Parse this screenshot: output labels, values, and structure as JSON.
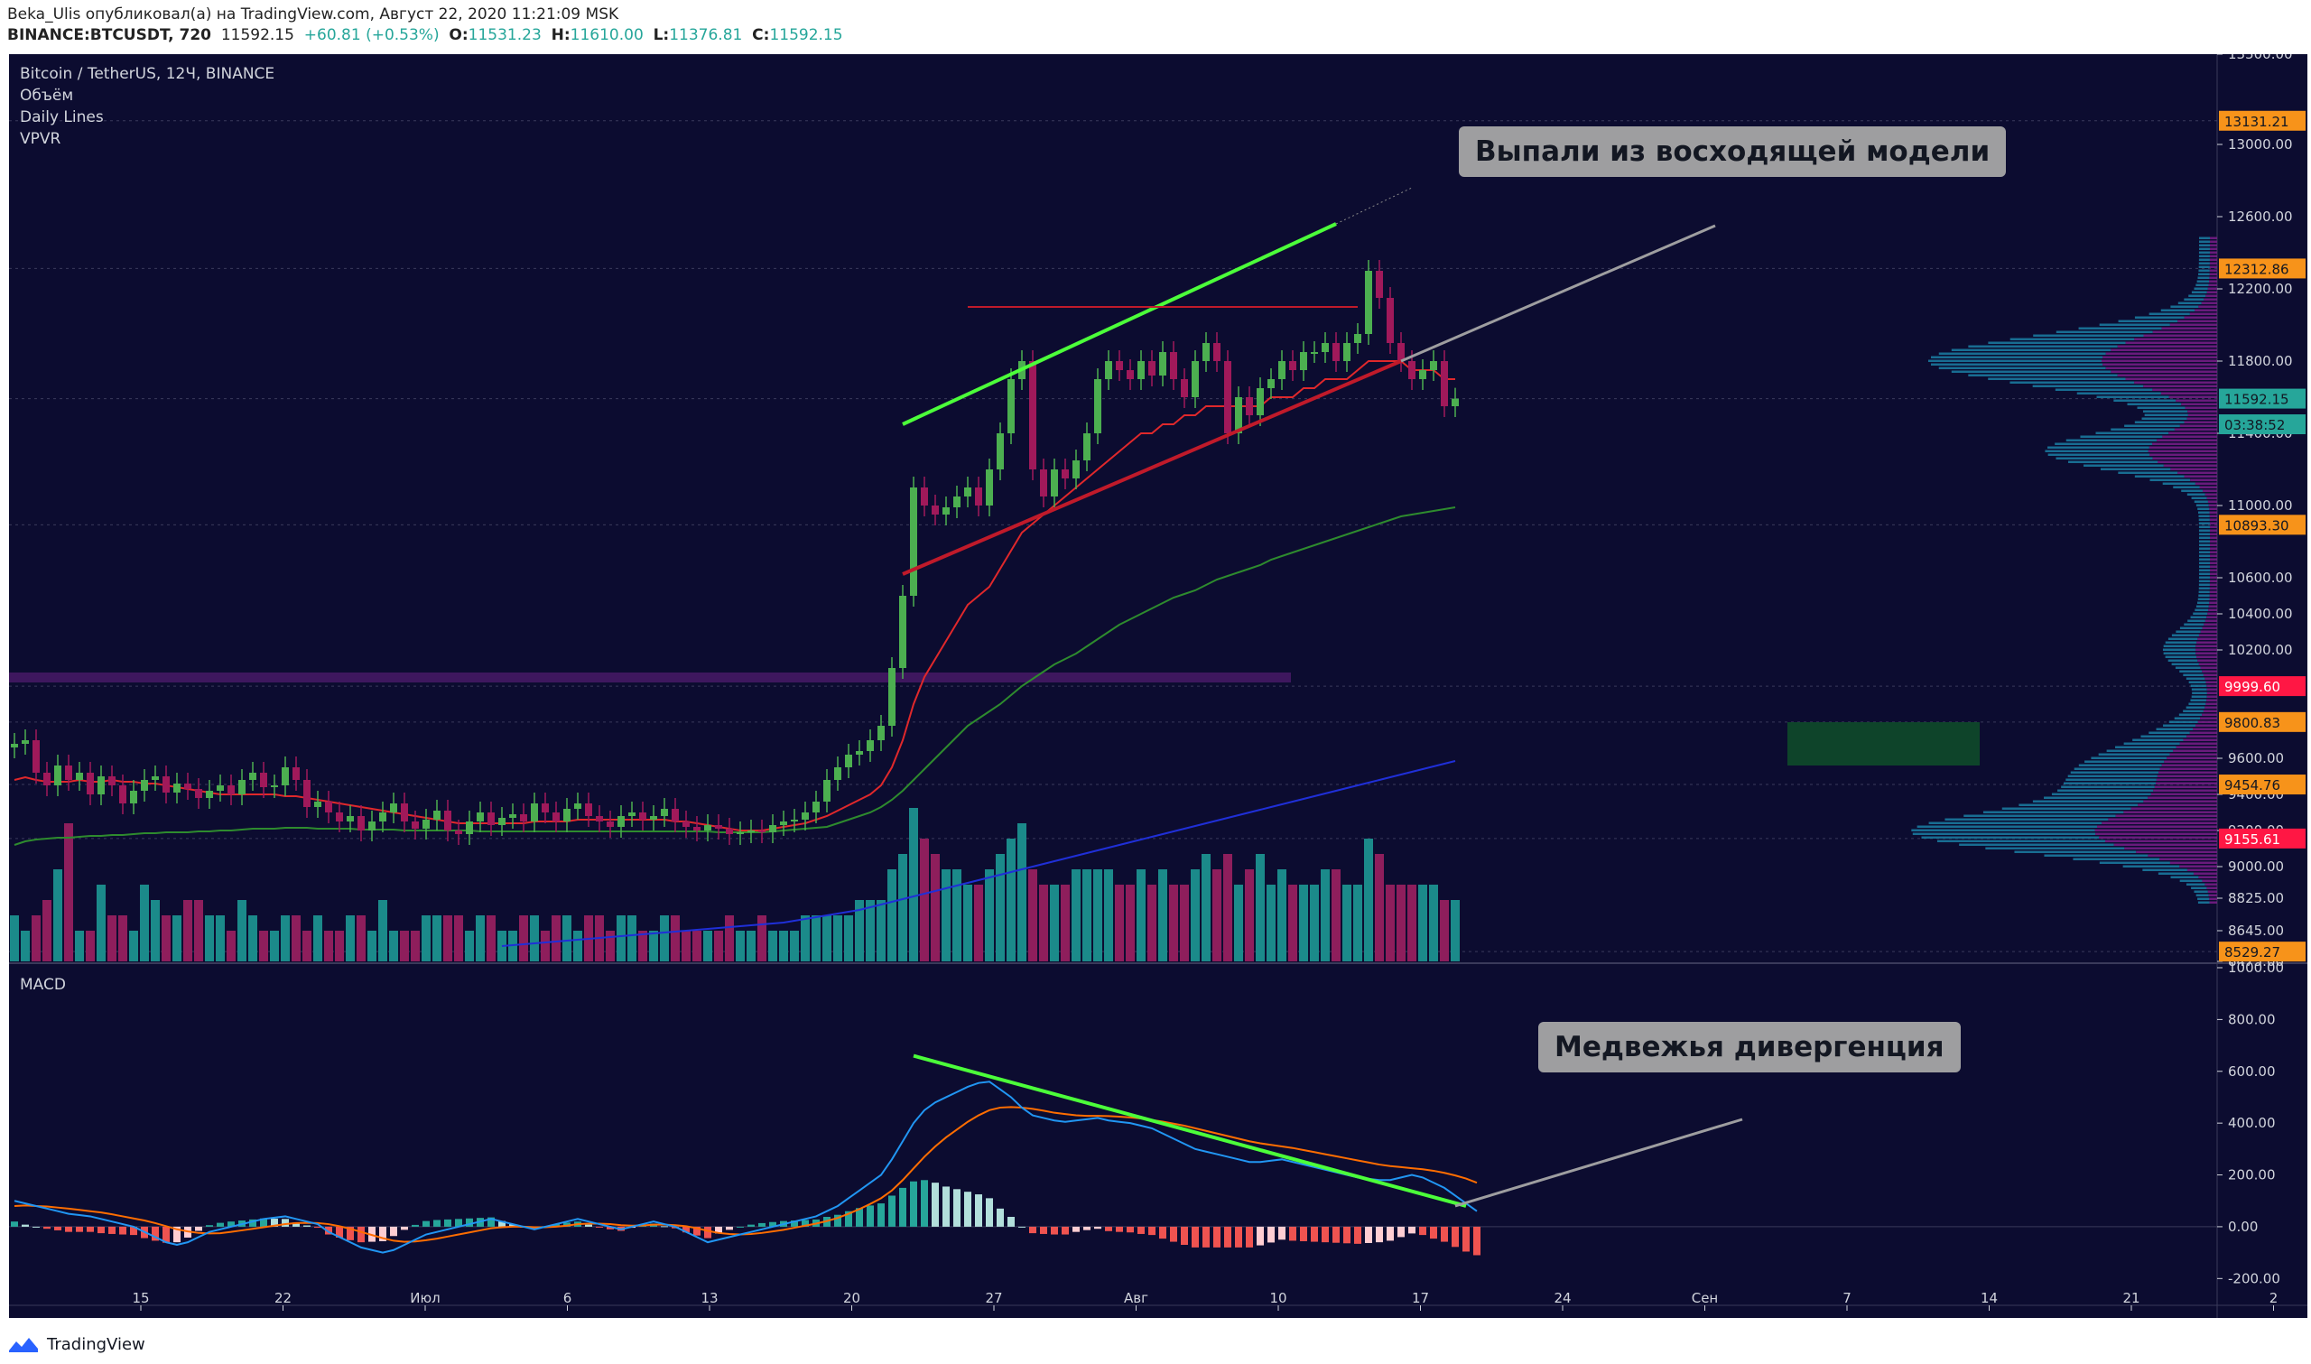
{
  "header": {
    "publish_line": "Beka_Ulis опубликовал(а) на TradingView.com, Август 22, 2020 11:21:09 MSK",
    "symbol": "BINANCE:BTCUSDT, 720",
    "last": "11592.15",
    "change": "+60.81 (+0.53%)",
    "o_label": "O:",
    "o_value": "11531.23",
    "h_label": "H:",
    "h_value": "11610.00",
    "l_label": "L:",
    "l_value": "11376.81",
    "c_label": "C:",
    "c_value": "11592.15"
  },
  "legend": {
    "title": "Bitcoin / TetherUS, 12Ч, BINANCE",
    "volume": "Объём",
    "daily_lines": "Daily Lines",
    "vpvr": "VPVR",
    "macd": "MACD"
  },
  "callouts": {
    "top": "Выпали из восходящей модели",
    "bottom": "Медвежья дивергенция"
  },
  "price_axis": {
    "ticks": [
      "13500.00",
      "13000.00",
      "12600.00",
      "12200.00",
      "11800.00",
      "11400.00",
      "11000.00",
      "10600.00",
      "10400.00",
      "10200.00",
      "9600.00",
      "9400.00",
      "9200.00",
      "9000.00",
      "8825.00",
      "8645.00",
      "8475.00"
    ],
    "badges": [
      {
        "text": "13131.21",
        "value": 13131.21,
        "color": "#f7931a"
      },
      {
        "text": "12312.86",
        "value": 12312.86,
        "color": "#f7931a"
      },
      {
        "text": "11592.15",
        "value": 11592.15,
        "color": "#26a69a"
      },
      {
        "text": "03:38:52",
        "value": 11450,
        "color": "#26a69a"
      },
      {
        "text": "10893.30",
        "value": 10893.3,
        "color": "#f7931a"
      },
      {
        "text": "9999.60",
        "value": 9999.6,
        "color": "#ff1744"
      },
      {
        "text": "9800.83",
        "value": 9800.83,
        "color": "#f7931a"
      },
      {
        "text": "9454.76",
        "value": 9454.76,
        "color": "#f7931a"
      },
      {
        "text": "9155.61",
        "value": 9155.61,
        "color": "#ff1744"
      },
      {
        "text": "8529.27",
        "value": 8529.27,
        "color": "#f7931a"
      }
    ]
  },
  "macd_axis": {
    "ticks": [
      "1000.00",
      "800.00",
      "600.00",
      "400.00",
      "200.00",
      "0.00",
      "-200.00"
    ]
  },
  "time_axis": {
    "labels": [
      "15",
      "22",
      "Июл",
      "6",
      "13",
      "20",
      "27",
      "Авг",
      "10",
      "17",
      "24",
      "Сен",
      "7",
      "14",
      "21",
      "2"
    ]
  },
  "footer": {
    "brand": "TradingView"
  },
  "colors": {
    "background": "#0c0c30",
    "up": "#4caf50",
    "down": "#a0195a",
    "vol_up": "#1b8a8a",
    "vol_down": "#8e1e5c",
    "ema_fast": "#e0282b",
    "ema_mid": "#2e8b2e",
    "ema_slow": "#1f2fd8",
    "macd": "#2196f3",
    "signal": "#ff6d00",
    "trend_green": "#4cff3a",
    "trend_red": "#c01a2a"
  },
  "chart_data": {
    "type": "candlestick",
    "interval": "12h",
    "ylim": [
      8475,
      13500
    ],
    "macd_ylim": [
      -300,
      1000
    ],
    "closes": [
      9680,
      9700,
      9520,
      9450,
      9560,
      9480,
      9520,
      9400,
      9500,
      9450,
      9350,
      9420,
      9480,
      9500,
      9410,
      9460,
      9430,
      9380,
      9420,
      9450,
      9400,
      9480,
      9520,
      9440,
      9450,
      9550,
      9480,
      9330,
      9360,
      9300,
      9250,
      9280,
      9200,
      9250,
      9300,
      9350,
      9250,
      9210,
      9260,
      9310,
      9200,
      9180,
      9250,
      9300,
      9230,
      9270,
      9290,
      9250,
      9350,
      9300,
      9250,
      9320,
      9350,
      9280,
      9250,
      9220,
      9280,
      9300,
      9260,
      9280,
      9320,
      9250,
      9220,
      9200,
      9230,
      9210,
      9180,
      9190,
      9200,
      9190,
      9230,
      9250,
      9260,
      9300,
      9360,
      9480,
      9550,
      9620,
      9640,
      9700,
      9780,
      10100,
      10500,
      11100,
      11000,
      10950,
      10990,
      11050,
      11100,
      11000,
      11200,
      11400,
      11700,
      11800,
      11200,
      11050,
      11200,
      11150,
      11250,
      11400,
      11700,
      11800,
      11750,
      11700,
      11800,
      11720,
      11850,
      11700,
      11600,
      11800,
      11900,
      11800,
      11400,
      11600,
      11500,
      11650,
      11700,
      11800,
      11750,
      11850,
      11850,
      11900,
      11800,
      11900,
      11950,
      12300,
      12150,
      11900,
      11800,
      11700,
      11750,
      11800,
      11550,
      11592
    ],
    "ema_fast": [
      9480,
      9495,
      9480,
      9470,
      9470,
      9470,
      9480,
      9470,
      9470,
      9480,
      9470,
      9470,
      9460,
      9460,
      9450,
      9440,
      9430,
      9420,
      9410,
      9400,
      9400,
      9400,
      9400,
      9400,
      9400,
      9390,
      9390,
      9380,
      9370,
      9360,
      9350,
      9340,
      9330,
      9320,
      9310,
      9300,
      9290,
      9280,
      9270,
      9260,
      9250,
      9240,
      9240,
      9240,
      9240,
      9240,
      9240,
      9240,
      9250,
      9250,
      9250,
      9250,
      9260,
      9260,
      9260,
      9260,
      9260,
      9260,
      9260,
      9260,
      9260,
      9250,
      9250,
      9240,
      9230,
      9220,
      9210,
      9200,
      9200,
      9200,
      9210,
      9220,
      9230,
      9240,
      9260,
      9280,
      9310,
      9340,
      9370,
      9400,
      9450,
      9550,
      9700,
      9900,
      10050,
      10150,
      10250,
      10350,
      10450,
      10500,
      10550,
      10650,
      10750,
      10850,
      10900,
      10950,
      11000,
      11050,
      11100,
      11150,
      11200,
      11250,
      11300,
      11350,
      11400,
      11400,
      11450,
      11450,
      11500,
      11500,
      11550,
      11550,
      11550,
      11550,
      11550,
      11550,
      11600,
      11600,
      11600,
      11650,
      11650,
      11700,
      11700,
      11700,
      11750,
      11800,
      11800,
      11800,
      11800,
      11750,
      11750,
      11750,
      11700,
      11700
    ],
    "ema_mid": [
      9120,
      9140,
      9150,
      9155,
      9160,
      9160,
      9165,
      9170,
      9170,
      9175,
      9175,
      9180,
      9185,
      9185,
      9190,
      9190,
      9190,
      9195,
      9195,
      9200,
      9200,
      9205,
      9210,
      9210,
      9210,
      9215,
      9215,
      9215,
      9210,
      9210,
      9210,
      9210,
      9205,
      9205,
      9205,
      9205,
      9200,
      9200,
      9200,
      9200,
      9200,
      9200,
      9200,
      9195,
      9195,
      9195,
      9195,
      9195,
      9195,
      9195,
      9195,
      9195,
      9195,
      9195,
      9195,
      9195,
      9195,
      9195,
      9195,
      9195,
      9195,
      9195,
      9195,
      9195,
      9195,
      9190,
      9190,
      9190,
      9190,
      9190,
      9195,
      9200,
      9205,
      9210,
      9215,
      9220,
      9240,
      9260,
      9280,
      9300,
      9330,
      9370,
      9420,
      9480,
      9540,
      9600,
      9660,
      9720,
      9780,
      9820,
      9860,
      9900,
      9950,
      10000,
      10040,
      10080,
      10120,
      10150,
      10180,
      10220,
      10260,
      10300,
      10340,
      10370,
      10400,
      10430,
      10460,
      10490,
      10510,
      10530,
      10560,
      10590,
      10610,
      10630,
      10650,
      10670,
      10700,
      10720,
      10740,
      10760,
      10780,
      10800,
      10820,
      10840,
      10860,
      10880,
      10900,
      10920,
      10940,
      10950,
      10960,
      10970,
      10980,
      10990
    ],
    "ema_slow_from_index": 45,
    "ema_slow": [
      8560,
      8565,
      8570,
      8575,
      8580,
      8585,
      8590,
      8595,
      8600,
      8605,
      8610,
      8615,
      8620,
      8625,
      8630,
      8635,
      8640,
      8645,
      8650,
      8655,
      8660,
      8665,
      8670,
      8675,
      8680,
      8685,
      8690,
      8700,
      8710,
      8720,
      8730,
      8740,
      8750,
      8760,
      8775,
      8790,
      8805,
      8820,
      8835,
      8850,
      8865,
      8880,
      8895,
      8910,
      8925,
      8940,
      8955,
      8970,
      8985,
      9000,
      9015,
      9030,
      9045,
      9060,
      9075,
      9090,
      9105,
      9120,
      9135,
      9150,
      9165,
      9180,
      9195,
      9210,
      9225,
      9240,
      9255,
      9270,
      9285,
      9300,
      9315,
      9330,
      9345,
      9360,
      9375,
      9390,
      9405,
      9420,
      9435,
      9450,
      9465,
      9480,
      9495,
      9510,
      9525,
      9540,
      9555,
      9570,
      9585
    ],
    "macd": [
      100,
      90,
      80,
      70,
      60,
      50,
      45,
      40,
      30,
      20,
      10,
      0,
      -20,
      -40,
      -60,
      -70,
      -60,
      -40,
      -20,
      -10,
      0,
      10,
      20,
      30,
      35,
      40,
      30,
      20,
      10,
      -20,
      -40,
      -60,
      -80,
      -90,
      -100,
      -90,
      -70,
      -50,
      -30,
      -20,
      -10,
      0,
      10,
      20,
      30,
      20,
      10,
      0,
      -10,
      0,
      10,
      20,
      30,
      20,
      10,
      0,
      -10,
      0,
      10,
      20,
      10,
      0,
      -20,
      -40,
      -60,
      -50,
      -40,
      -30,
      -20,
      -10,
      0,
      10,
      20,
      30,
      40,
      60,
      80,
      110,
      140,
      170,
      200,
      260,
      330,
      400,
      450,
      480,
      500,
      520,
      540,
      555,
      560,
      530,
      500,
      460,
      430,
      420,
      410,
      405,
      410,
      415,
      420,
      410,
      405,
      400,
      390,
      380,
      360,
      340,
      320,
      300,
      290,
      280,
      270,
      260,
      250,
      250,
      255,
      260,
      250,
      240,
      230,
      220,
      210,
      200,
      190,
      185,
      180,
      180,
      190,
      200,
      190,
      170,
      150,
      120,
      90,
      60
    ],
    "signal": [
      80,
      82,
      80,
      78,
      74,
      70,
      65,
      60,
      55,
      48,
      40,
      32,
      24,
      14,
      2,
      -10,
      -18,
      -24,
      -26,
      -25,
      -20,
      -14,
      -8,
      -2,
      4,
      10,
      14,
      15,
      14,
      10,
      2,
      -8,
      -20,
      -32,
      -44,
      -54,
      -58,
      -57,
      -52,
      -46,
      -38,
      -30,
      -22,
      -14,
      -6,
      -2,
      0,
      0,
      -2,
      -2,
      0,
      4,
      10,
      12,
      12,
      10,
      6,
      4,
      5,
      8,
      8,
      6,
      2,
      -6,
      -16,
      -24,
      -28,
      -30,
      -28,
      -24,
      -18,
      -12,
      -4,
      4,
      12,
      22,
      34,
      50,
      68,
      88,
      110,
      140,
      180,
      225,
      270,
      310,
      345,
      375,
      405,
      430,
      450,
      460,
      462,
      460,
      455,
      448,
      440,
      435,
      430,
      428,
      428,
      427,
      425,
      422,
      418,
      412,
      406,
      398,
      390,
      380,
      370,
      360,
      350,
      340,
      330,
      322,
      316,
      310,
      304,
      296,
      288,
      280,
      272,
      264,
      256,
      248,
      240,
      234,
      230,
      226,
      222,
      216,
      208,
      198,
      186,
      170
    ],
    "volume": [
      3,
      2,
      3,
      4,
      6,
      9,
      2,
      2,
      5,
      3,
      3,
      2,
      5,
      4,
      3,
      3,
      4,
      4,
      3,
      3,
      2,
      4,
      3,
      2,
      2,
      3,
      3,
      2,
      3,
      2,
      2,
      3,
      3,
      2,
      4,
      2,
      2,
      2,
      3,
      3,
      3,
      3,
      2,
      3,
      3,
      2,
      2,
      3,
      3,
      2,
      3,
      3,
      2,
      3,
      3,
      2,
      3,
      3,
      2,
      2,
      3,
      3,
      2,
      2,
      2,
      2,
      3,
      2,
      2,
      3,
      2,
      2,
      2,
      3,
      3,
      3,
      3,
      3,
      4,
      4,
      4,
      6,
      7,
      10,
      8,
      7,
      6,
      6,
      5,
      5,
      6,
      7,
      8,
      9,
      6,
      5,
      5,
      5,
      6,
      6,
      6,
      6,
      5,
      5,
      6,
      5,
      6,
      5,
      5,
      6,
      7,
      6,
      7,
      5,
      6,
      7,
      5,
      6,
      5,
      5,
      5,
      6,
      6,
      5,
      5,
      8,
      7,
      5,
      5,
      5,
      5,
      5,
      4,
      4
    ]
  }
}
